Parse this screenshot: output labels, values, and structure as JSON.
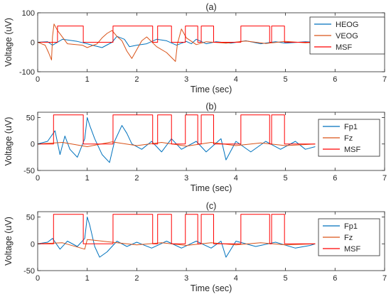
{
  "figure": {
    "colors": {
      "series_1": "#0072BD",
      "series_2": "#D95319",
      "msf": "#FF0000",
      "axis": "#262626"
    }
  },
  "chart_data": [
    {
      "type": "line",
      "title": "(a)",
      "xlabel": "Time (sec)",
      "ylabel": "Voltage (uV)",
      "xlim": [
        0,
        7
      ],
      "ylim": [
        -100,
        100
      ],
      "xticks": [
        0,
        1,
        2,
        3,
        4,
        5,
        6,
        7
      ],
      "yticks": [
        -100,
        0,
        100
      ],
      "grid": false,
      "legend_position": "top-right",
      "series": [
        {
          "name": "HEOG",
          "color": "#0072BD",
          "points": [
            [
              0,
              0
            ],
            [
              0.2,
              2
            ],
            [
              0.3,
              -10
            ],
            [
              0.5,
              10
            ],
            [
              0.8,
              3
            ],
            [
              1.0,
              -5
            ],
            [
              1.1,
              -10
            ],
            [
              1.3,
              -18
            ],
            [
              1.5,
              0
            ],
            [
              1.6,
              20
            ],
            [
              1.75,
              10
            ],
            [
              1.85,
              -15
            ],
            [
              2.0,
              -10
            ],
            [
              2.2,
              -5
            ],
            [
              2.4,
              10
            ],
            [
              2.6,
              5
            ],
            [
              2.8,
              -10
            ],
            [
              3.0,
              3
            ],
            [
              3.1,
              -5
            ],
            [
              3.2,
              10
            ],
            [
              3.4,
              -5
            ],
            [
              3.6,
              2
            ],
            [
              3.9,
              -3
            ],
            [
              4.2,
              5
            ],
            [
              4.5,
              -5
            ],
            [
              4.8,
              2
            ],
            [
              5.0,
              -3
            ],
            [
              5.4,
              2
            ],
            [
              5.6,
              0
            ]
          ]
        },
        {
          "name": "VEOG",
          "color": "#D95319",
          "points": [
            [
              0,
              0
            ],
            [
              0.15,
              -10
            ],
            [
              0.22,
              -35
            ],
            [
              0.28,
              -60
            ],
            [
              0.3,
              20
            ],
            [
              0.33,
              62
            ],
            [
              0.4,
              40
            ],
            [
              0.6,
              -5
            ],
            [
              0.9,
              -10
            ],
            [
              1.0,
              -18
            ],
            [
              1.2,
              -5
            ],
            [
              1.3,
              15
            ],
            [
              1.4,
              30
            ],
            [
              1.5,
              40
            ],
            [
              1.6,
              20
            ],
            [
              1.7,
              5
            ],
            [
              1.8,
              -30
            ],
            [
              1.9,
              -55
            ],
            [
              2.0,
              -25
            ],
            [
              2.1,
              5
            ],
            [
              2.2,
              18
            ],
            [
              2.4,
              -15
            ],
            [
              2.6,
              -35
            ],
            [
              2.78,
              -65
            ],
            [
              2.82,
              -5
            ],
            [
              2.9,
              45
            ],
            [
              3.0,
              15
            ],
            [
              3.2,
              -8
            ],
            [
              3.4,
              2
            ],
            [
              3.8,
              -3
            ],
            [
              4.2,
              4
            ],
            [
              4.6,
              -4
            ],
            [
              5.0,
              3
            ],
            [
              5.4,
              -2
            ],
            [
              5.6,
              0
            ]
          ]
        },
        {
          "name": "MSF",
          "color": "#FF0000",
          "intervals": [
            [
              0.4,
              0.92
            ],
            [
              1.52,
              2.32
            ],
            [
              2.42,
              2.7
            ],
            [
              2.98,
              3.23
            ],
            [
              3.3,
              3.55
            ],
            [
              4.1,
              4.68
            ],
            [
              4.72,
              4.98
            ]
          ],
          "high": 55,
          "low": 0
        }
      ]
    },
    {
      "type": "line",
      "title": "(b)",
      "xlabel": "Time (sec)",
      "ylabel": "Voltage (uV)",
      "xlim": [
        0,
        7
      ],
      "ylim": [
        -50,
        60
      ],
      "xticks": [
        0,
        1,
        2,
        3,
        4,
        5,
        6,
        7
      ],
      "yticks": [
        -50,
        0,
        50
      ],
      "grid": false,
      "legend_position": "right",
      "series": [
        {
          "name": "Fp1",
          "color": "#0072BD",
          "points": [
            [
              0,
              0
            ],
            [
              0.2,
              5
            ],
            [
              0.35,
              25
            ],
            [
              0.45,
              -20
            ],
            [
              0.55,
              15
            ],
            [
              0.65,
              -10
            ],
            [
              0.8,
              -25
            ],
            [
              0.95,
              10
            ],
            [
              1.0,
              50
            ],
            [
              1.05,
              35
            ],
            [
              1.15,
              10
            ],
            [
              1.3,
              -20
            ],
            [
              1.45,
              -35
            ],
            [
              1.55,
              5
            ],
            [
              1.7,
              35
            ],
            [
              1.8,
              20
            ],
            [
              1.9,
              0
            ],
            [
              2.1,
              -10
            ],
            [
              2.3,
              5
            ],
            [
              2.5,
              -15
            ],
            [
              2.7,
              10
            ],
            [
              2.9,
              -10
            ],
            [
              3.2,
              5
            ],
            [
              3.4,
              -15
            ],
            [
              3.7,
              10
            ],
            [
              3.8,
              -30
            ],
            [
              4.0,
              5
            ],
            [
              4.3,
              -15
            ],
            [
              4.6,
              5
            ],
            [
              4.9,
              -10
            ],
            [
              5.2,
              5
            ],
            [
              5.4,
              -10
            ],
            [
              5.6,
              -5
            ]
          ]
        },
        {
          "name": "Fz",
          "color": "#D95319",
          "points": [
            [
              0,
              0
            ],
            [
              0.5,
              3
            ],
            [
              1.0,
              -5
            ],
            [
              1.5,
              4
            ],
            [
              2.0,
              -3
            ],
            [
              2.5,
              3
            ],
            [
              3.0,
              -4
            ],
            [
              3.5,
              3
            ],
            [
              4.0,
              -3
            ],
            [
              4.5,
              2
            ],
            [
              5.0,
              -3
            ],
            [
              5.6,
              0
            ]
          ]
        },
        {
          "name": "MSF",
          "color": "#FF0000",
          "intervals": [
            [
              0.32,
              0.92
            ],
            [
              1.52,
              2.32
            ],
            [
              2.42,
              2.7
            ],
            [
              2.98,
              3.23
            ],
            [
              3.3,
              3.55
            ],
            [
              4.1,
              4.68
            ],
            [
              4.72,
              4.98
            ]
          ],
          "high": 55,
          "low": 0
        }
      ]
    },
    {
      "type": "line",
      "title": "(c)",
      "xlabel": "Time (sec)",
      "ylabel": "Voltage (uV)",
      "xlim": [
        0,
        7
      ],
      "ylim": [
        -50,
        60
      ],
      "xticks": [
        0,
        1,
        2,
        3,
        4,
        5,
        6,
        7
      ],
      "yticks": [
        -50,
        0,
        50
      ],
      "grid": false,
      "legend_position": "right",
      "series": [
        {
          "name": "Fp1",
          "color": "#0072BD",
          "points": [
            [
              0,
              0
            ],
            [
              0.2,
              3
            ],
            [
              0.3,
              10
            ],
            [
              0.45,
              -10
            ],
            [
              0.6,
              5
            ],
            [
              0.8,
              -5
            ],
            [
              0.95,
              10
            ],
            [
              1.0,
              50
            ],
            [
              1.05,
              35
            ],
            [
              1.15,
              -5
            ],
            [
              1.25,
              -25
            ],
            [
              1.4,
              -15
            ],
            [
              1.6,
              5
            ],
            [
              1.8,
              -5
            ],
            [
              2.0,
              3
            ],
            [
              2.3,
              -8
            ],
            [
              2.6,
              5
            ],
            [
              2.9,
              -8
            ],
            [
              3.2,
              5
            ],
            [
              3.5,
              -8
            ],
            [
              3.7,
              5
            ],
            [
              3.8,
              -25
            ],
            [
              4.0,
              5
            ],
            [
              4.4,
              -5
            ],
            [
              4.8,
              3
            ],
            [
              5.2,
              -8
            ],
            [
              5.5,
              -3
            ],
            [
              5.6,
              0
            ]
          ]
        },
        {
          "name": "Fz",
          "color": "#D95319",
          "points": [
            [
              0,
              0
            ],
            [
              0.5,
              2
            ],
            [
              0.95,
              -10
            ],
            [
              1.0,
              8
            ],
            [
              1.5,
              3
            ],
            [
              2.0,
              -2
            ],
            [
              2.5,
              2
            ],
            [
              3.0,
              -3
            ],
            [
              3.5,
              2
            ],
            [
              4.0,
              -2
            ],
            [
              4.5,
              2
            ],
            [
              5.0,
              -2
            ],
            [
              5.6,
              0
            ]
          ]
        },
        {
          "name": "MSF",
          "color": "#FF0000",
          "intervals": [
            [
              0.32,
              0.92
            ],
            [
              1.52,
              2.32
            ],
            [
              2.42,
              2.7
            ],
            [
              2.98,
              3.23
            ],
            [
              3.3,
              3.55
            ],
            [
              4.1,
              4.68
            ],
            [
              4.72,
              4.98
            ]
          ],
          "high": 55,
          "low": 0
        }
      ]
    }
  ]
}
